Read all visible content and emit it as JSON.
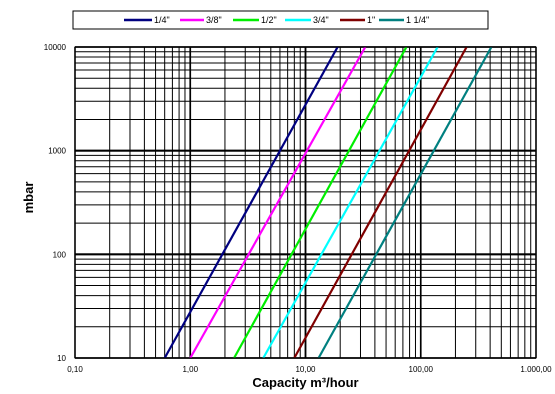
{
  "chart_data": {
    "type": "line",
    "xlabel": "Capacity m³/hour",
    "ylabel": "mbar",
    "x_scale": "log",
    "y_scale": "log",
    "xlim": [
      0.1,
      1000
    ],
    "ylim": [
      10,
      10000
    ],
    "x_ticks": [
      {
        "value": 0.1,
        "label": "0,10"
      },
      {
        "value": 1,
        "label": "1,00"
      },
      {
        "value": 10,
        "label": "10,00"
      },
      {
        "value": 100,
        "label": "100,00"
      },
      {
        "value": 1000,
        "label": "1.000,00"
      }
    ],
    "y_ticks": [
      {
        "value": 10,
        "label": "10"
      },
      {
        "value": 100,
        "label": "100"
      },
      {
        "value": 1000,
        "label": "1000"
      },
      {
        "value": 10000,
        "label": "10000"
      }
    ],
    "grid": true,
    "legend_position": "top",
    "series": [
      {
        "name": "1/4\"",
        "color": "#000080",
        "points": [
          [
            0.6,
            10
          ],
          [
            19,
            10000
          ]
        ]
      },
      {
        "name": "3/8\"",
        "color": "#ff00ff",
        "points": [
          [
            1.0,
            10
          ],
          [
            33,
            10000
          ]
        ]
      },
      {
        "name": "1/2\"",
        "color": "#00ee00",
        "points": [
          [
            2.4,
            10
          ],
          [
            75,
            10000
          ]
        ]
      },
      {
        "name": "3/4\"",
        "color": "#00ffff",
        "points": [
          [
            4.3,
            10
          ],
          [
            140,
            10000
          ]
        ]
      },
      {
        "name": "1\"",
        "color": "#800000",
        "points": [
          [
            8.0,
            10
          ],
          [
            250,
            10000
          ]
        ]
      },
      {
        "name": "1 1/4\"",
        "color": "#008080",
        "points": [
          [
            13,
            10
          ],
          [
            410,
            10000
          ]
        ]
      }
    ]
  }
}
